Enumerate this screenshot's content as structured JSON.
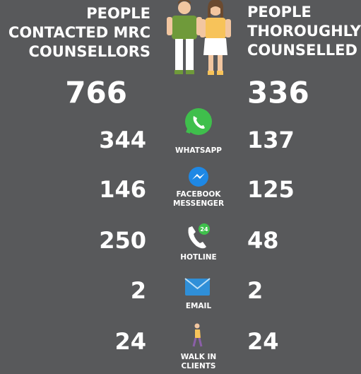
{
  "left_header": [
    "PEOPLE",
    "CONTACTED MRC",
    "COUNSELLORS"
  ],
  "right_header": [
    "PEOPLE",
    "THOROUGHLY",
    "COUNSELLED"
  ],
  "totals": {
    "contacted": 766,
    "counselled": 336
  },
  "hotline_badge": "24",
  "rows": [
    {
      "label": [
        "WHATSAPP"
      ],
      "contacted": 344,
      "counselled": 137
    },
    {
      "label": [
        "FACEBOOK",
        "MESSENGER"
      ],
      "contacted": 146,
      "counselled": 125
    },
    {
      "label": [
        "HOTLINE"
      ],
      "contacted": 250,
      "counselled": 48
    },
    {
      "label": [
        "EMAIL"
      ],
      "contacted": 2,
      "counselled": 2
    },
    {
      "label": [
        "WALK IN",
        "CLIENTS"
      ],
      "contacted": 24,
      "counselled": 24
    }
  ]
}
